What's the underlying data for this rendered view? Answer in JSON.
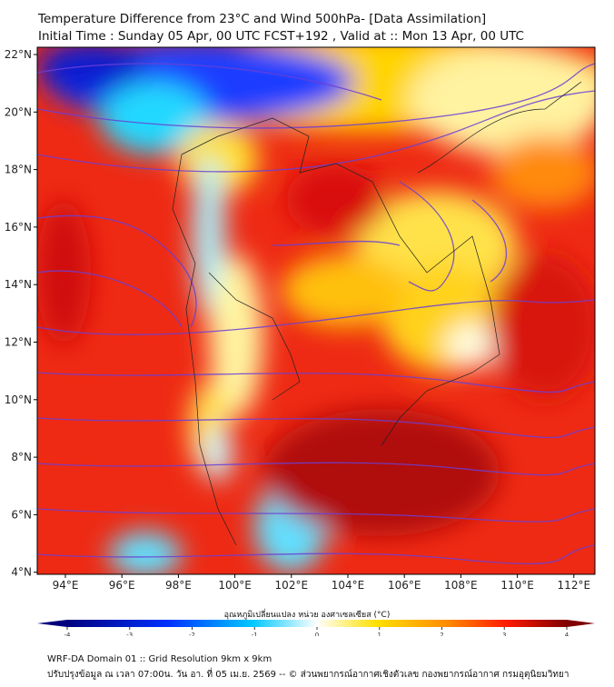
{
  "header": {
    "title": "Temperature Difference from 23°C and Wind 500hPa- [Data Assimilation]",
    "subtitle": "Initial Time : Sunday 05 Apr, 00 UTC FCST+192 , Valid at ::  Mon 13 Apr, 00 UTC"
  },
  "map": {
    "lon_ticks": [
      "94°E",
      "96°E",
      "98°E",
      "100°E",
      "102°E",
      "104°E",
      "106°E",
      "108°E",
      "110°E",
      "112°E"
    ],
    "lat_ticks": [
      "22°N",
      "20°N",
      "18°N",
      "16°N",
      "14°N",
      "12°N",
      "10°N",
      "8°N",
      "6°N",
      "4°N"
    ],
    "streamline_color": "#6b3fd6"
  },
  "colorbar": {
    "label": "อุณหภูมิเปลี่ยนแปลง หน่วย องศาเซลเซียส (°C)",
    "ticks": [
      "-4",
      "-3",
      "-2",
      "-1",
      "0",
      "1",
      "2",
      "3",
      "4"
    ],
    "range": [
      -4,
      4
    ],
    "colors": [
      "#00007f",
      "#0030ff",
      "#00c8ff",
      "#ffffff",
      "#ffe000",
      "#ff8c00",
      "#ff1a00",
      "#7f0000"
    ]
  },
  "footer": {
    "line1": "WRF-DA Domain 01 :: Grid Resolution 9km x 9km",
    "line2": "ปรับปรุงข้อมูล ณ เวลา 07:00น. วัน อา. ที่ 05 เม.ย. 2569 -- © ส่วนพยากรณ์อากาศเชิงตัวเลข กองพยากรณ์อากาศ กรมอุตุนิยมวิทยา"
  }
}
